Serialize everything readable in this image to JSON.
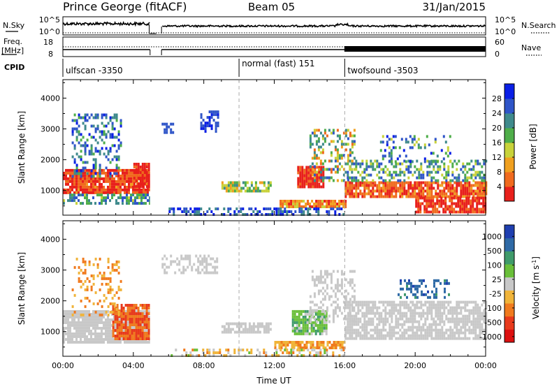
{
  "header": {
    "station": "Prince George (fitACF)",
    "beam": "Beam 05",
    "date": "31/Jan/2015"
  },
  "strips": {
    "nsky_label": "N.Sky",
    "nsearch_label": "N.Search",
    "freq_label_1": "Freq.",
    "freq_label_2": "[MHz]",
    "nave_label": "Nave",
    "cpid_label": "CPID",
    "noise_ticks": [
      "10^5",
      "10^0"
    ],
    "freq_ticks": [
      "18",
      "8"
    ],
    "nave_ticks": [
      "60",
      "0"
    ]
  },
  "cpid_segments": [
    {
      "name": "ulfscan",
      "id": "-3350",
      "start_hour": 0
    },
    {
      "name": "normal (fast)",
      "id": "151",
      "start_hour": 10
    },
    {
      "name": "twofsound",
      "id": "-3503",
      "start_hour": 16
    }
  ],
  "chart_data": [
    {
      "type": "heatmap",
      "quantity": "Power",
      "ylabel": "Slant Range [km]",
      "colorbar_label": "Power [dB]",
      "xlim_hours": [
        0,
        24
      ],
      "ylim": [
        200,
        4600
      ],
      "y_ticks": [
        1000,
        2000,
        3000,
        4000
      ],
      "colorbar_ticks": [
        "28",
        "24",
        "20",
        "16",
        "12",
        "8",
        "4"
      ],
      "colorbar_colors": [
        "#0a1fe6",
        "#2f55c8",
        "#3f8a8c",
        "#4fae4a",
        "#c8d23a",
        "#f0a020",
        "#f06a1e",
        "#e8201c"
      ]
    },
    {
      "type": "heatmap",
      "quantity": "Velocity",
      "ylabel": "Slant Range [km]",
      "colorbar_label": "Velocity [m s",
      "colorbar_label_sup": "-1",
      "colorbar_label_end": "]",
      "xlabel": "Time UT",
      "xlim_hours": [
        0,
        24
      ],
      "ylim": [
        200,
        4600
      ],
      "y_ticks": [
        1000,
        2000,
        3000,
        4000
      ],
      "x_tick_labels": [
        "00:00",
        "04:00",
        "08:00",
        "12:00",
        "16:00",
        "20:00",
        "00:00"
      ],
      "colorbar_ticks": [
        "1000",
        "500",
        "100",
        "25",
        "-25",
        "-100",
        "-500",
        "-1000"
      ],
      "colorbar_colors": [
        "#1f3fb0",
        "#2f6aa6",
        "#3f9a6a",
        "#6abf3a",
        "#c8c8c8",
        "#f0b43a",
        "#f07a1e",
        "#e83a1c",
        "#dc1010"
      ]
    }
  ]
}
